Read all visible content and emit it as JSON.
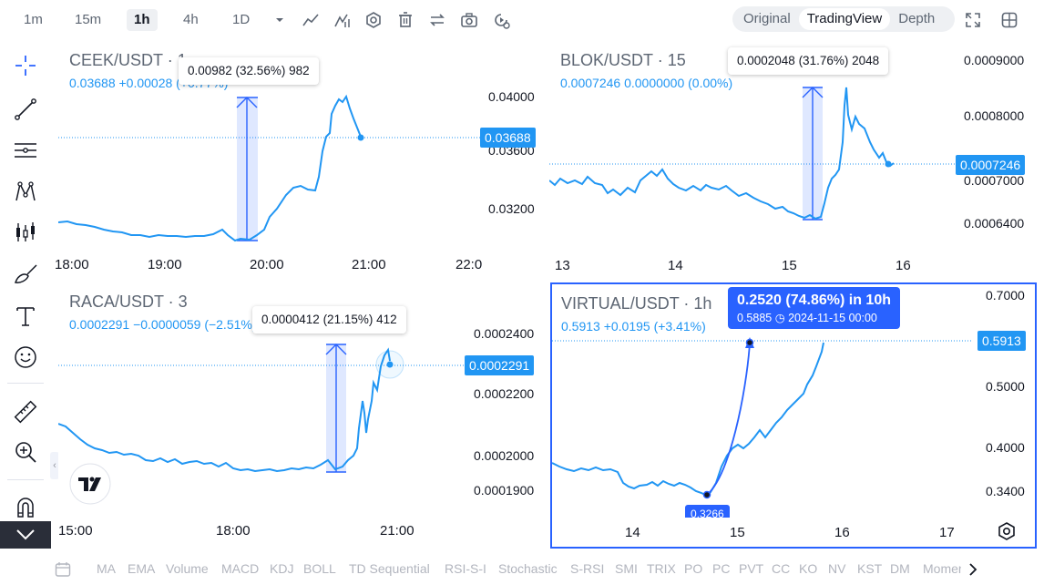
{
  "toolbar": {
    "timeframes": [
      "1m",
      "15m",
      "1h",
      "4h",
      "1D"
    ],
    "active_timeframe": "1h",
    "views": [
      "Original",
      "TradingView",
      "Depth"
    ],
    "active_view": "TradingView",
    "icons": [
      "chevron-down-icon",
      "line-chart-icon",
      "indicators-icon",
      "settings-icon",
      "delete-icon",
      "swap-icon",
      "camera-icon",
      "replay-icon",
      "fullscreen-icon",
      "grid-layout-icon"
    ]
  },
  "left_tools": {
    "icons": [
      "crosshair-icon",
      "trend-line-icon",
      "horizontal-lines-icon",
      "pattern-icon",
      "candles-icon",
      "brush-icon",
      "text-icon",
      "emoji-icon",
      "ruler-icon",
      "zoom-in-icon",
      "magnet-icon"
    ]
  },
  "panels": {
    "ceek": {
      "symbol": "CEEK/USDT · 1",
      "quote": "0.03688  +0.00028 (+0.77%)",
      "tooltip": "0.00982 (32.56%) 982",
      "price_tag": "0.03688",
      "y_labels": [
        "0.04000",
        "0.03600",
        "0.03200"
      ],
      "x_labels": [
        "18:00",
        "19:00",
        "20:00",
        "21:00",
        "22:0"
      ]
    },
    "blok": {
      "symbol": "BLOK/USDT · 15",
      "quote": "0.0007246  0.0000000 (0.00%)",
      "tooltip": "0.0002048 (31.76%) 2048",
      "price_tag": "0.0007246",
      "y_labels": [
        "0.0009000",
        "0.0008000",
        "0.0007000",
        "0.0006400"
      ],
      "x_labels": [
        "13",
        "14",
        "15",
        "16"
      ]
    },
    "raca": {
      "symbol": "RACA/USDT · 3",
      "quote": "0.0002291  −0.0000059 (−2.51%)",
      "tooltip": "0.0000412 (21.15%) 412",
      "price_tag": "0.0002291",
      "y_labels": [
        "0.0002400",
        "0.0002200",
        "0.0002000",
        "0.0001900"
      ],
      "x_labels": [
        "15:00",
        "18:00",
        "21:00"
      ]
    },
    "virtual": {
      "symbol": "VIRTUAL/USDT · 1h",
      "quote": "0.5913  +0.0195 (+3.41%)",
      "measure_line1": "0.2520 (74.86%) in 10h",
      "measure_line2": "0.5885  ◷ 2024-11-15   00:00",
      "low_tag": "0.3266",
      "price_tag": "0.5913",
      "y_labels": [
        "0.7000",
        "0.5000",
        "0.4000",
        "0.3400"
      ],
      "x_labels": [
        "14",
        "15",
        "16",
        "17"
      ]
    }
  },
  "indicators": [
    "MA",
    "EMA",
    "Volume",
    "MACD",
    "KDJ",
    "BOLL",
    "TD Sequential",
    "RSI-S-I",
    "Stochastic",
    "S-RSI",
    "SMI",
    "TRIX",
    "PO",
    "PC",
    "PVT",
    "CC",
    "KO",
    "NV",
    "KST",
    "DM",
    "Momer"
  ],
  "colors": {
    "line": "#2196f3",
    "accent": "#2962ff",
    "muted": "#5d6673"
  }
}
